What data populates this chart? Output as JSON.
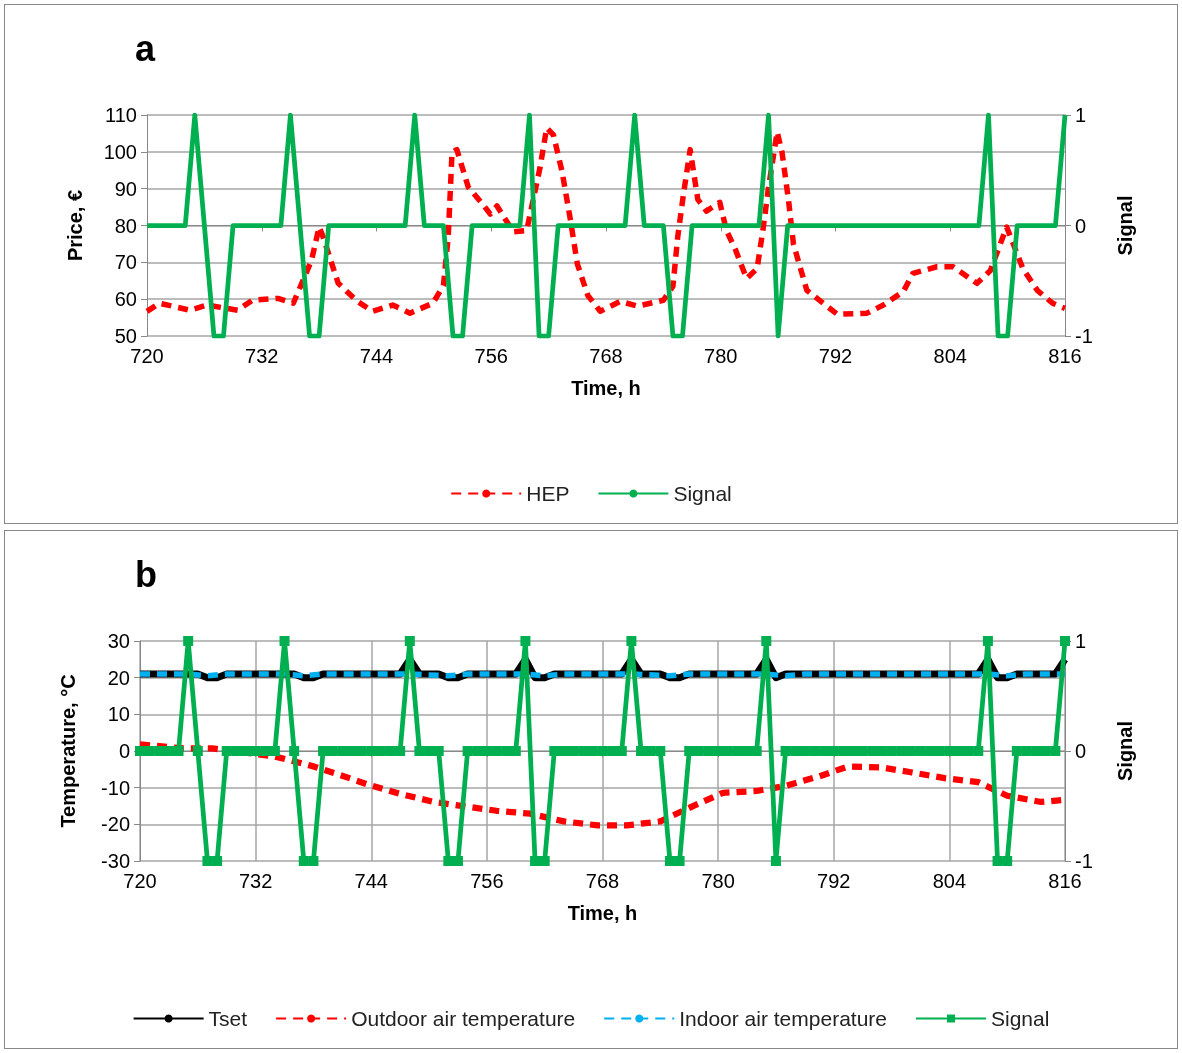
{
  "chart_data": [
    {
      "type": "line",
      "title": "a",
      "xlabel": "Time, h",
      "ylabel": "Price, €",
      "y2label": "Signal",
      "xlim": [
        720,
        816
      ],
      "xticks": [
        720,
        732,
        744,
        756,
        768,
        780,
        792,
        804,
        816
      ],
      "ylim": [
        50,
        110
      ],
      "yticks": [
        50,
        60,
        70,
        80,
        90,
        100,
        110
      ],
      "y2lim": [
        -1,
        1
      ],
      "y2ticks": [
        -1,
        0,
        1
      ],
      "grid": "y",
      "legend": "bottom",
      "marker": "none",
      "x": [
        720,
        721,
        722,
        723,
        724,
        725,
        726,
        727,
        728,
        729,
        730,
        731,
        732,
        733,
        734,
        735,
        736,
        737,
        738,
        739,
        740,
        741,
        742,
        743,
        744,
        745,
        746,
        747,
        748,
        749,
        750,
        751,
        752,
        753,
        754,
        755,
        756,
        757,
        758,
        759,
        760,
        761,
        762,
        763,
        764,
        765,
        766,
        767,
        768,
        769,
        770,
        771,
        772,
        773,
        774,
        775,
        776,
        777,
        778,
        779,
        780,
        781,
        782,
        783,
        784,
        785,
        786,
        787,
        788,
        789,
        790,
        791,
        792,
        793,
        794,
        795,
        796,
        797,
        798,
        799,
        800,
        801,
        802,
        803,
        804,
        805,
        806,
        807,
        808,
        809,
        810,
        811,
        812,
        813,
        814,
        815,
        816
      ],
      "series": [
        {
          "name": "HEP",
          "color": "#ff0000",
          "line_style": "dashed",
          "x": [
            720,
            721.3,
            724.5,
            726.3,
            729.5,
            731,
            733.7,
            735.3,
            737.2,
            738,
            738.4,
            740,
            742,
            743.6,
            745.7,
            747.5,
            749.9,
            751,
            751.5,
            751.9,
            752.4,
            753.6,
            755.1,
            755.9,
            756.6,
            758.3,
            759.7,
            761.1,
            761.8,
            762.5,
            763.4,
            764.3,
            765,
            766.1,
            767.4,
            769.5,
            771.3,
            774,
            775,
            775.5,
            776.1,
            776.8,
            777.6,
            778.5,
            779.9,
            780.6,
            781.5,
            782.7,
            783.8,
            784.4,
            785,
            785.9,
            786.4,
            787.1,
            787.6,
            789,
            791.1,
            792.2,
            795.3,
            797,
            799.1,
            800.1,
            802.6,
            804.3,
            806.8,
            808.2,
            809.9,
            811.6,
            813.1,
            814.7,
            816
          ],
          "values": [
            56.7,
            58.9,
            57,
            58.4,
            57,
            59.7,
            60.2,
            58.9,
            70.5,
            79.6,
            77,
            64.3,
            59.4,
            56.7,
            58.4,
            56.2,
            58.9,
            63.7,
            76.9,
            99.8,
            100.6,
            90.4,
            85.8,
            83.1,
            85.3,
            78.3,
            78.6,
            95.7,
            106.5,
            104.6,
            94.7,
            81.2,
            69.6,
            61,
            56.7,
            59.4,
            58.1,
            59.7,
            63.5,
            76.9,
            88.5,
            100.6,
            87.1,
            83.9,
            86.3,
            78.6,
            73.7,
            65.6,
            68.3,
            78.6,
            90.4,
            105.4,
            100,
            86.6,
            75,
            62.4,
            58.1,
            55.9,
            56.2,
            58.4,
            62.1,
            67,
            68.8,
            68.8,
            64.3,
            67.8,
            79.6,
            68.3,
            62.4,
            58.9,
            57.5
          ]
        },
        {
          "name": "Signal",
          "color": "#00b050",
          "line_style": "solid",
          "axis": "y2",
          "values": [
            0,
            0,
            0,
            0,
            0,
            1,
            0,
            -1,
            -1,
            0,
            0,
            0,
            0,
            0,
            0,
            1,
            0,
            -1,
            -1,
            0,
            0,
            0,
            0,
            0,
            0,
            0,
            0,
            0,
            1,
            0,
            0,
            0,
            -1,
            -1,
            0,
            0,
            0,
            0,
            0,
            0,
            1,
            -1,
            -1,
            0,
            0,
            0,
            0,
            0,
            0,
            0,
            0,
            1,
            0,
            0,
            0,
            -1,
            -1,
            0,
            0,
            0,
            0,
            0,
            0,
            0,
            0,
            1,
            -1,
            0,
            0,
            0,
            0,
            0,
            0,
            0,
            0,
            0,
            0,
            0,
            0,
            0,
            0,
            0,
            0,
            0,
            0,
            0,
            0,
            0,
            1,
            -1,
            -1,
            0,
            0,
            0,
            0,
            0,
            1
          ]
        }
      ]
    },
    {
      "type": "line",
      "title": "b",
      "xlabel": "Time, h",
      "ylabel": "Temperature, °C",
      "y2label": "Signal",
      "xlim": [
        720,
        816
      ],
      "xticks": [
        720,
        732,
        744,
        756,
        768,
        780,
        792,
        804,
        816
      ],
      "ylim": [
        -30,
        30
      ],
      "yticks": [
        -30,
        -20,
        -10,
        0,
        10,
        20,
        30
      ],
      "y2lim": [
        -1,
        1
      ],
      "y2ticks": [
        -1,
        0,
        1
      ],
      "grid": true,
      "legend": "bottom",
      "marker": "none",
      "x": [
        720,
        721,
        722,
        723,
        724,
        725,
        726,
        727,
        728,
        729,
        730,
        731,
        732,
        733,
        734,
        735,
        736,
        737,
        738,
        739,
        740,
        741,
        742,
        743,
        744,
        745,
        746,
        747,
        748,
        749,
        750,
        751,
        752,
        753,
        754,
        755,
        756,
        757,
        758,
        759,
        760,
        761,
        762,
        763,
        764,
        765,
        766,
        767,
        768,
        769,
        770,
        771,
        772,
        773,
        774,
        775,
        776,
        777,
        778,
        779,
        780,
        781,
        782,
        783,
        784,
        785,
        786,
        787,
        788,
        789,
        790,
        791,
        792,
        793,
        794,
        795,
        796,
        797,
        798,
        799,
        800,
        801,
        802,
        803,
        804,
        805,
        806,
        807,
        808,
        809,
        810,
        811,
        812,
        813,
        814,
        815,
        816
      ],
      "series": [
        {
          "name": "Tset",
          "color": "#000000",
          "line_style": "solid",
          "values": [
            21,
            21,
            21,
            21,
            21,
            21,
            21,
            20,
            20,
            21,
            21,
            21,
            21,
            21,
            21,
            21,
            21,
            20,
            20,
            21,
            21,
            21,
            21,
            21,
            21,
            21,
            21,
            21,
            25,
            21,
            21,
            21,
            20,
            20,
            21,
            21,
            21,
            21,
            21,
            21,
            25,
            20,
            20,
            21,
            21,
            21,
            21,
            21,
            21,
            21,
            21,
            25,
            21,
            21,
            21,
            20,
            20,
            21,
            21,
            21,
            21,
            21,
            21,
            21,
            21,
            25,
            20,
            21,
            21,
            21,
            21,
            21,
            21,
            21,
            21,
            21,
            21,
            21,
            21,
            21,
            21,
            21,
            21,
            21,
            21,
            21,
            21,
            21,
            25,
            20,
            20,
            21,
            21,
            21,
            21,
            21,
            25
          ]
        },
        {
          "name": "Outdoor air temperature",
          "color": "#ff0000",
          "line_style": "dashed",
          "x": [
            720,
            724.5,
            727.5,
            734,
            738,
            740.5,
            743.5,
            747,
            750.5,
            754,
            757,
            760.5,
            764,
            767.5,
            770.5,
            774,
            777,
            780.5,
            784,
            787,
            790.5,
            793.5,
            797,
            800,
            803.5,
            807,
            810,
            813.5,
            816
          ],
          "values": [
            1.8,
            0.7,
            0.7,
            -1.5,
            -4.2,
            -6.3,
            -9,
            -11.7,
            -13.9,
            -15.2,
            -16.3,
            -17.1,
            -19.2,
            -20.3,
            -20.3,
            -19.2,
            -15.5,
            -11.4,
            -10.9,
            -9.5,
            -6.9,
            -4.2,
            -4.5,
            -5.8,
            -7.4,
            -8.5,
            -12.2,
            -13.9,
            -13.3
          ]
        },
        {
          "name": "Indoor air temperature",
          "color": "#00b0f0",
          "line_style": "dashed",
          "x": [
            720,
            725,
            727,
            729,
            735,
            737,
            739,
            748,
            752,
            754,
            760,
            762,
            764,
            771,
            775,
            777,
            785,
            787,
            789,
            808,
            810,
            812,
            816
          ],
          "values": [
            21,
            21,
            20.5,
            21,
            21,
            20.5,
            21,
            21,
            20.5,
            21,
            21,
            20.5,
            21,
            21,
            20.5,
            21,
            21,
            20.5,
            21,
            21,
            20.5,
            21,
            21
          ]
        },
        {
          "name": "Signal",
          "color": "#00b050",
          "line_style": "solid",
          "marker": "square",
          "axis": "y2",
          "values": [
            0,
            0,
            0,
            0,
            0,
            1,
            0,
            -1,
            -1,
            0,
            0,
            0,
            0,
            0,
            0,
            1,
            0,
            -1,
            -1,
            0,
            0,
            0,
            0,
            0,
            0,
            0,
            0,
            0,
            1,
            0,
            0,
            0,
            -1,
            -1,
            0,
            0,
            0,
            0,
            0,
            0,
            1,
            -1,
            -1,
            0,
            0,
            0,
            0,
            0,
            0,
            0,
            0,
            1,
            0,
            0,
            0,
            -1,
            -1,
            0,
            0,
            0,
            0,
            0,
            0,
            0,
            0,
            1,
            -1,
            0,
            0,
            0,
            0,
            0,
            0,
            0,
            0,
            0,
            0,
            0,
            0,
            0,
            0,
            0,
            0,
            0,
            0,
            0,
            0,
            0,
            1,
            -1,
            -1,
            0,
            0,
            0,
            0,
            0,
            1
          ]
        }
      ]
    }
  ]
}
